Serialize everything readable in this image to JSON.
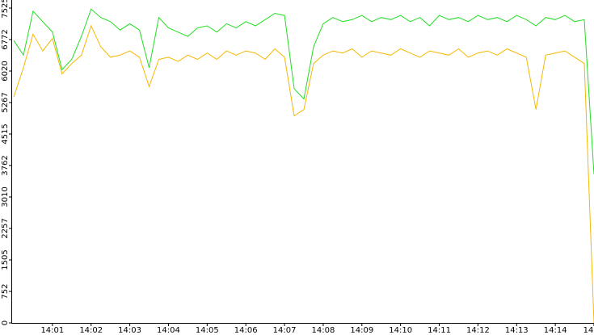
{
  "chart_data": {
    "type": "line",
    "categories": [
      null,
      null,
      null,
      null,
      "14:01",
      null,
      null,
      null,
      "14:02",
      null,
      null,
      null,
      "14:03",
      null,
      null,
      null,
      "14:04",
      null,
      null,
      null,
      "14:05",
      null,
      null,
      null,
      "14:06",
      null,
      null,
      null,
      "14:07",
      null,
      null,
      null,
      "14:08",
      null,
      null,
      null,
      "14:09",
      null,
      null,
      null,
      "14:10",
      null,
      null,
      null,
      "14:11",
      null,
      null,
      null,
      "14:12",
      null,
      null,
      null,
      "14:13",
      null,
      null,
      null,
      "14:14",
      null,
      null,
      null,
      "14"
    ],
    "series": [
      {
        "color": "#22dd22",
        "values": [
          6750,
          6400,
          7450,
          7200,
          6950,
          6050,
          6300,
          6850,
          7500,
          7300,
          7200,
          7000,
          7150,
          7000,
          6100,
          7300,
          7050,
          6950,
          6850,
          7050,
          7100,
          6950,
          7150,
          7050,
          7200,
          7100,
          7250,
          7400,
          7350,
          5600,
          5350,
          6600,
          7150,
          7300,
          7200,
          7250,
          7350,
          7200,
          7300,
          7250,
          7350,
          7200,
          7300,
          7100,
          7350,
          7250,
          7300,
          7200,
          7350,
          7250,
          7300,
          7200,
          7350,
          7250,
          7100,
          7300,
          7250,
          7350,
          7200,
          7250,
          3550
        ]
      },
      {
        "color": "#f5b800",
        "values": [
          5400,
          6100,
          6900,
          6500,
          6800,
          5950,
          6200,
          6400,
          7100,
          6600,
          6350,
          6400,
          6500,
          6350,
          5650,
          6300,
          6350,
          6250,
          6400,
          6300,
          6450,
          6300,
          6500,
          6400,
          6500,
          6450,
          6300,
          6550,
          6350,
          4950,
          5100,
          6200,
          6400,
          6500,
          6450,
          6550,
          6350,
          6500,
          6450,
          6400,
          6550,
          6450,
          6350,
          6500,
          6450,
          6400,
          6550,
          6350,
          6450,
          6500,
          6400,
          6550,
          6450,
          6350,
          5100,
          6400,
          6450,
          6500,
          6350,
          6200,
          0
        ]
      }
    ],
    "ylim": [
      0,
      7525
    ],
    "yticks": [
      0,
      752,
      1505,
      2257,
      3010,
      3762,
      4515,
      5267,
      6020,
      6772,
      7525
    ],
    "grid": false
  }
}
